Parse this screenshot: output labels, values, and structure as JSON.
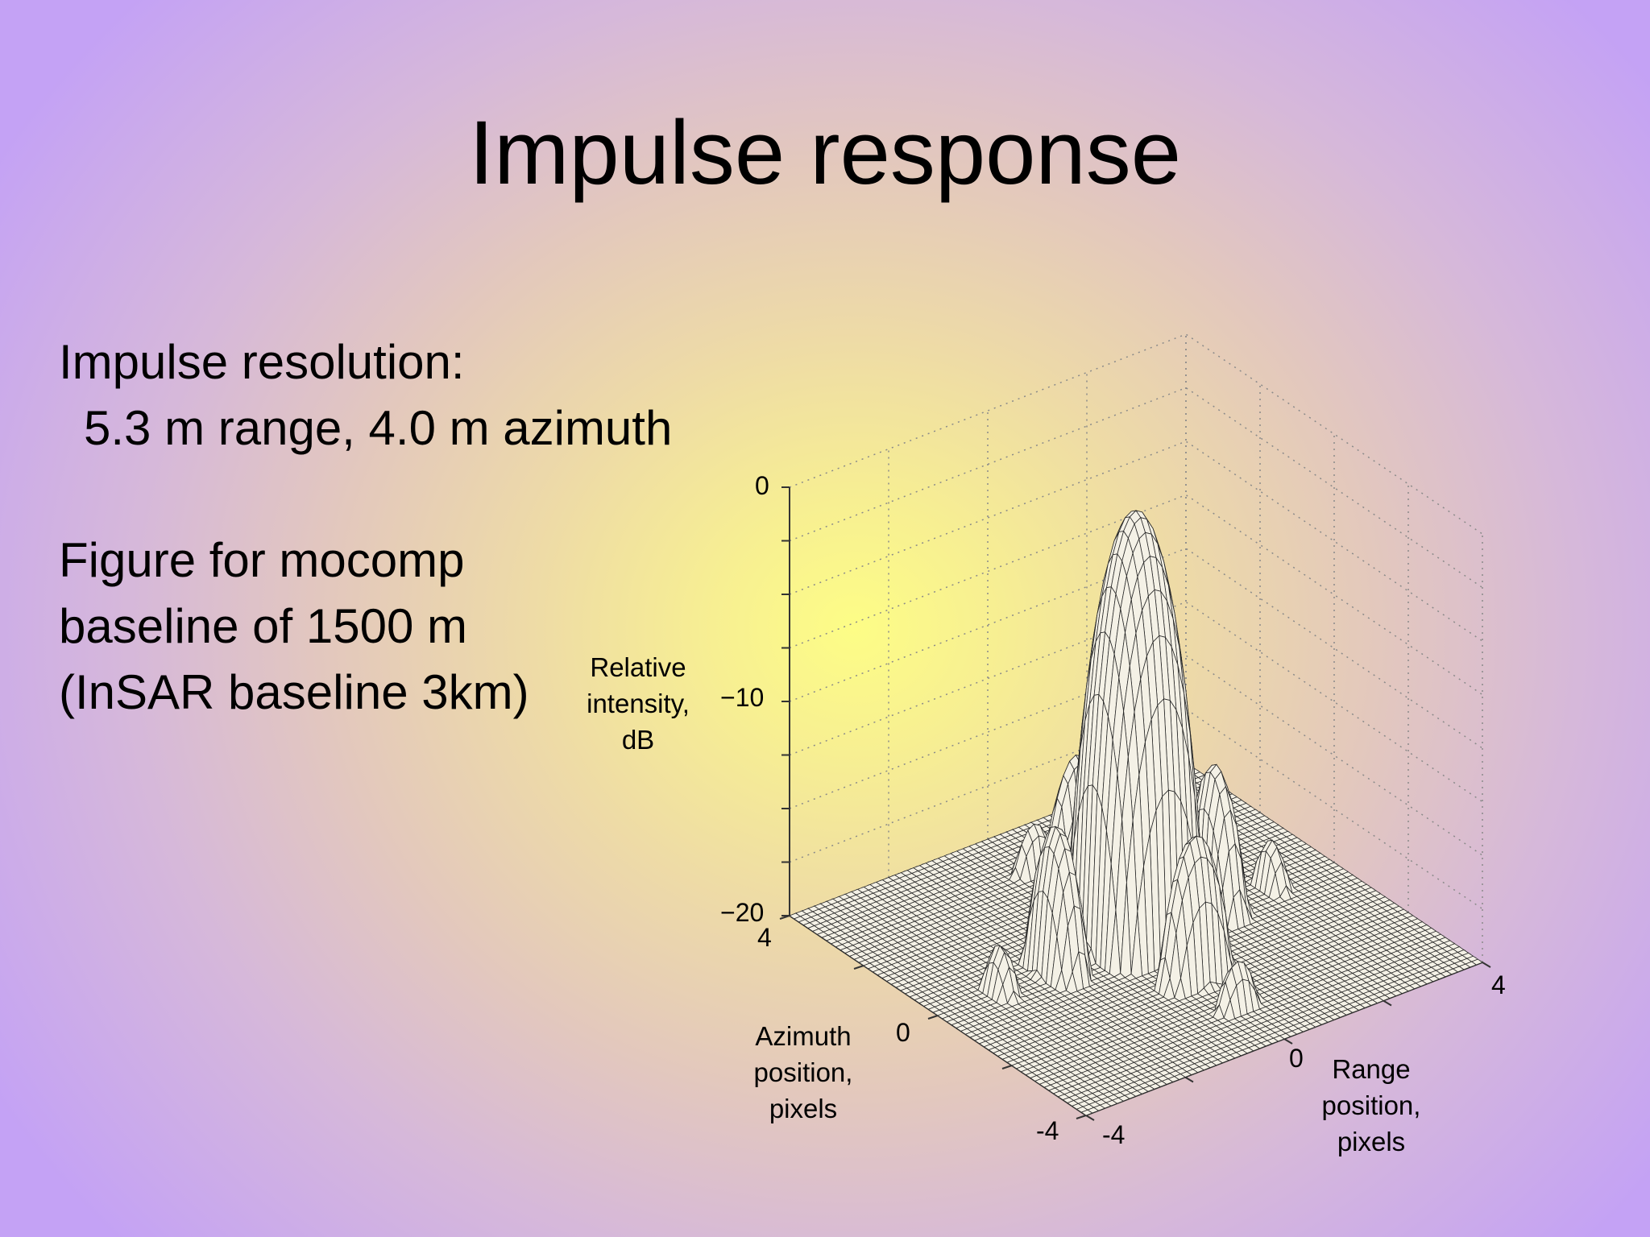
{
  "slide": {
    "title": "Impulse response",
    "resolution_heading": "Impulse resolution:",
    "resolution_detail": "5.3 m range, 4.0 m azimuth",
    "figure_note": [
      "Figure for mocomp",
      "baseline of 1500 m",
      "(InSAR baseline 3km)"
    ]
  },
  "chart_data": {
    "type": "surface",
    "surface_function": "sinc-squared impulse response (2D), dB scale, floor -20 dB",
    "z_axis": {
      "label_lines": [
        "Relative",
        "intensity,",
        "dB"
      ],
      "ticks": [
        "0",
        "−10",
        "−20"
      ],
      "range": [
        -20,
        0
      ]
    },
    "azimuth_axis": {
      "label_lines": [
        "Azimuth",
        "position,",
        "pixels"
      ],
      "ticks": [
        "4",
        "0",
        "-4"
      ],
      "range": [
        -4,
        4
      ]
    },
    "range_axis": {
      "label_lines": [
        "Range",
        "position,",
        "pixels"
      ],
      "ticks": [
        "-4",
        "0",
        "4"
      ],
      "range": [
        -4,
        4
      ]
    },
    "peak_value_db": 0,
    "grid": "dotted",
    "mesh_color": "#2a2a2a",
    "axis_color": "#333333"
  }
}
